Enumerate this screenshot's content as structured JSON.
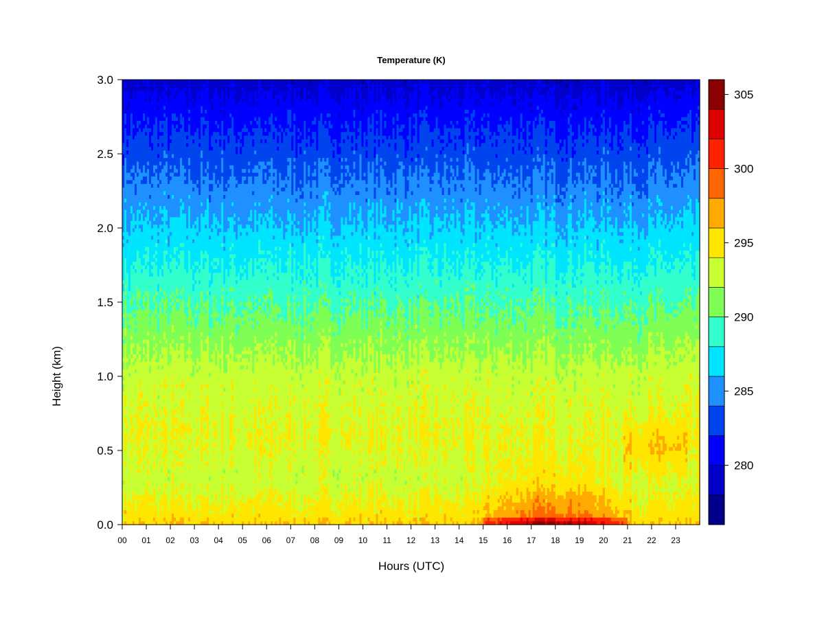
{
  "chart_data": {
    "type": "heatmap",
    "title": "Temperature (K)",
    "xlabel": "Hours (UTC)",
    "ylabel": "Height (km)",
    "x_ticks": [
      "00",
      "01",
      "02",
      "03",
      "04",
      "05",
      "06",
      "07",
      "08",
      "09",
      "10",
      "11",
      "12",
      "13",
      "14",
      "15",
      "16",
      "17",
      "18",
      "19",
      "20",
      "21",
      "22",
      "23"
    ],
    "xlim": [
      0,
      24
    ],
    "y_ticks": [
      "0.0",
      "0.5",
      "1.0",
      "1.5",
      "2.0",
      "2.5",
      "3.0"
    ],
    "ylim": [
      0,
      3.0
    ],
    "colorbar": {
      "ticks": [
        "280",
        "285",
        "290",
        "295",
        "300",
        "305"
      ],
      "range": [
        276,
        306
      ],
      "levels": [
        276,
        278,
        280,
        282,
        284,
        286,
        288,
        290,
        292,
        294,
        296,
        298,
        300,
        302,
        304,
        306
      ],
      "colors": [
        "#00008b",
        "#0000c8",
        "#0000ff",
        "#0044ee",
        "#1e90ff",
        "#00e5ff",
        "#33ffcc",
        "#7fff55",
        "#c8ff33",
        "#ffe600",
        "#ffaa00",
        "#ff6600",
        "#ff2200",
        "#dd0000",
        "#8b0000"
      ]
    },
    "approx_profile": {
      "description_heights_km": [
        0.0,
        0.05,
        0.3,
        0.6,
        1.0,
        1.3,
        1.6,
        1.9,
        2.2,
        2.5,
        2.8,
        3.0
      ],
      "morning_K": [
        296,
        295,
        293,
        294,
        293,
        291,
        289,
        287,
        285,
        283,
        281,
        279
      ],
      "afternoon_K": [
        303,
        299,
        295,
        294,
        293,
        291,
        289,
        287,
        285,
        283,
        281,
        279
      ]
    }
  }
}
